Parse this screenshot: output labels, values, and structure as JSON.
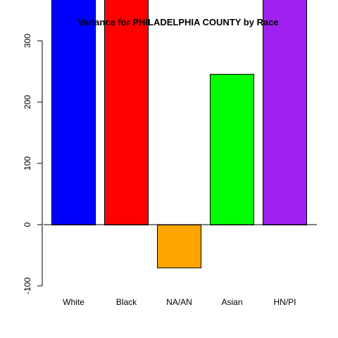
{
  "chart_data": {
    "type": "bar",
    "title": "Variance for PHILADELPHIA COUNTY by Race",
    "xlabel": "",
    "ylabel": "",
    "categories": [
      "White",
      "Black",
      "NA/AN",
      "Asian",
      "HN/PI"
    ],
    "values": [
      400,
      400,
      -70,
      246,
      400
    ],
    "colors": [
      "#0000ff",
      "#ff0000",
      "#ffa500",
      "#00ff00",
      "#a020f0"
    ],
    "ylim": [
      -100,
      370
    ],
    "y_ticks": [
      -100,
      0,
      100,
      200,
      300
    ],
    "y_tick_labels": [
      "-100",
      "0",
      "100",
      "200",
      "300"
    ],
    "baseline": 0,
    "grid": false,
    "legend": "none"
  }
}
